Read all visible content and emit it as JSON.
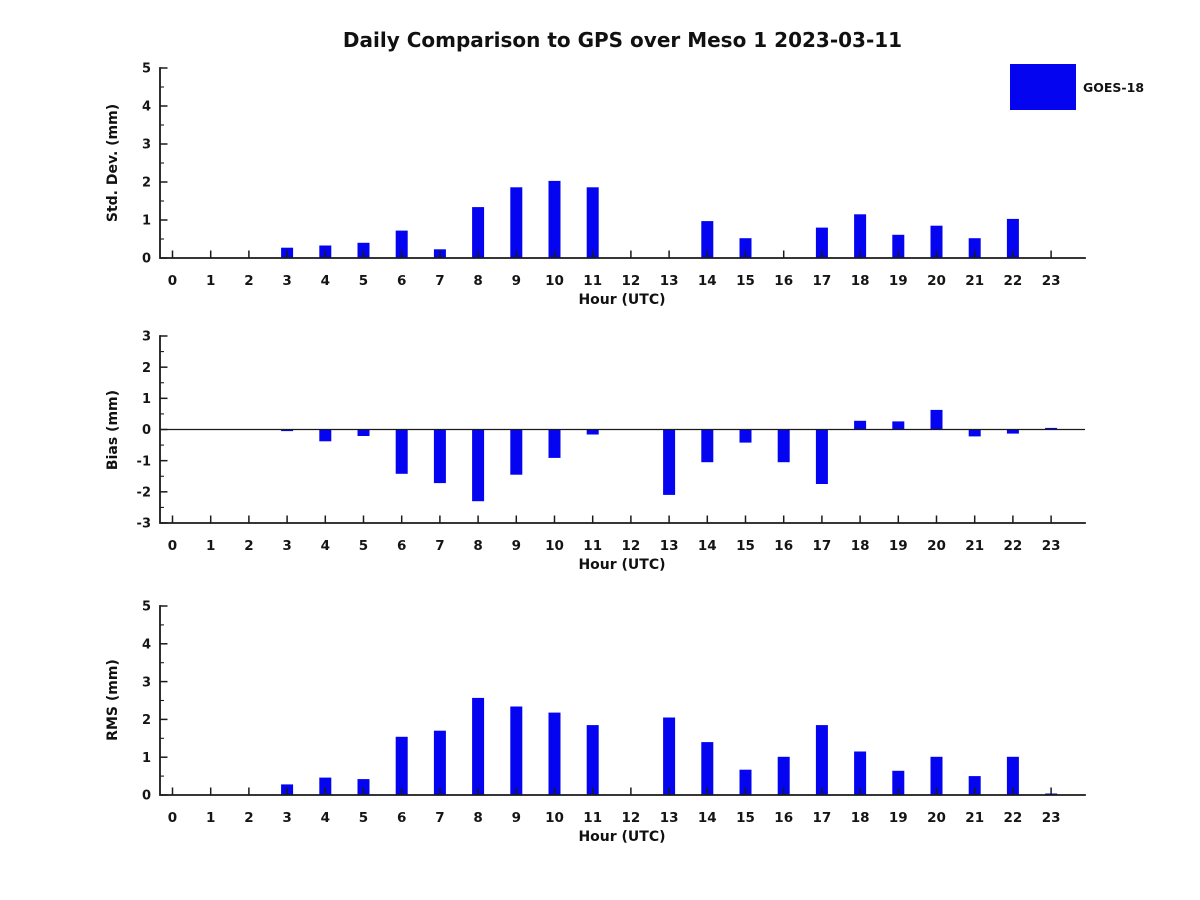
{
  "title": "Daily Comparison to GPS over Meso 1 2023-03-11",
  "legend": {
    "label": "GOES-18",
    "color": "#0404f0",
    "position": "top-right"
  },
  "chart_data": [
    {
      "type": "bar",
      "name": "std-dev",
      "ylabel": "Std. Dev. (mm)",
      "xlabel": "Hour (UTC)",
      "series_name": "GOES-18",
      "bar_color": "#0404f0",
      "categories": [
        0,
        1,
        2,
        3,
        4,
        5,
        6,
        7,
        8,
        9,
        10,
        11,
        12,
        13,
        14,
        15,
        16,
        17,
        18,
        19,
        20,
        21,
        22,
        23
      ],
      "values": [
        0,
        0,
        0,
        0.27,
        0.33,
        0.4,
        0.72,
        0.23,
        1.34,
        1.86,
        2.03,
        1.86,
        0,
        0,
        0.97,
        0.52,
        0,
        0.8,
        1.15,
        0.61,
        0.85,
        0.52,
        1.03,
        0
      ],
      "ylim": [
        0,
        5
      ],
      "ytick_step": 1,
      "yminor_step": 0.5,
      "zero_line": false,
      "grid": false
    },
    {
      "type": "bar",
      "name": "bias",
      "ylabel": "Bias (mm)",
      "xlabel": "Hour (UTC)",
      "series_name": "GOES-18",
      "bar_color": "#0404f0",
      "categories": [
        0,
        1,
        2,
        3,
        4,
        5,
        6,
        7,
        8,
        9,
        10,
        11,
        12,
        13,
        14,
        15,
        16,
        17,
        18,
        19,
        20,
        21,
        22,
        23
      ],
      "values": [
        0,
        0,
        0,
        -0.05,
        -0.38,
        -0.21,
        -1.42,
        -1.72,
        -2.3,
        -1.45,
        -0.91,
        -0.16,
        0,
        -2.1,
        -1.05,
        -0.42,
        -1.05,
        -1.75,
        0.28,
        0.26,
        0.63,
        -0.22,
        -0.13,
        0.05
      ],
      "ylim": [
        -3,
        3
      ],
      "ytick_step": 1,
      "yminor_step": 0.5,
      "zero_line": true,
      "grid": false
    },
    {
      "type": "bar",
      "name": "rms",
      "ylabel": "RMS (mm)",
      "xlabel": "Hour (UTC)",
      "series_name": "GOES-18",
      "bar_color": "#0404f0",
      "categories": [
        0,
        1,
        2,
        3,
        4,
        5,
        6,
        7,
        8,
        9,
        10,
        11,
        12,
        13,
        14,
        15,
        16,
        17,
        18,
        19,
        20,
        21,
        22,
        23
      ],
      "values": [
        0,
        0,
        0,
        0.28,
        0.46,
        0.42,
        1.54,
        1.7,
        2.57,
        2.34,
        2.18,
        1.85,
        0,
        2.05,
        1.4,
        0.67,
        1.01,
        1.85,
        1.15,
        0.64,
        1.01,
        0.5,
        1.01,
        0.04
      ],
      "ylim": [
        0,
        5
      ],
      "ytick_step": 1,
      "yminor_step": 0.5,
      "zero_line": false,
      "grid": false
    }
  ]
}
